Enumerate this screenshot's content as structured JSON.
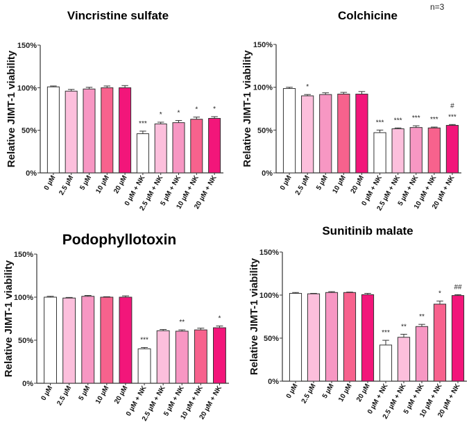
{
  "note": "n=3",
  "chart_data": [
    {
      "type": "bar",
      "title": "Vincristine sulfate",
      "ylabel": "Relative JIMT-1 viability",
      "ylim": [
        0,
        150
      ],
      "yticks": [
        "0%",
        "50%",
        "100%",
        "150%"
      ],
      "categories": [
        "0 µM",
        "2.5 µM",
        "5 µM",
        "10 µM",
        "20 µM",
        "0 µM + NK",
        "2.5 µM + NK",
        "5 µM + NK",
        "10 µM + NK",
        "20 µM + NK"
      ],
      "values": [
        101,
        96,
        98.5,
        100,
        100,
        46,
        57.5,
        59,
        63,
        64
      ],
      "errors": [
        1,
        2,
        2,
        2,
        2.5,
        3,
        2,
        2.5,
        2.5,
        2
      ],
      "significance": [
        "",
        "",
        "",
        "",
        "",
        "***",
        "*",
        "*",
        "*",
        "*"
      ]
    },
    {
      "type": "bar",
      "title": "Colchicine",
      "ylabel": "Relative JIMT-1 viability",
      "ylim": [
        0,
        150
      ],
      "yticks": [
        "0%",
        "50%",
        "100%",
        "150%"
      ],
      "categories": [
        "0 µM",
        "2.5 µM",
        "5 µM",
        "10 µM",
        "20 µM",
        "0 µM + NK",
        "2.5 µM + NK",
        "5 µM + NK",
        "10 µM + NK",
        "20 µM + NK"
      ],
      "values": [
        98.5,
        90,
        91.5,
        92,
        92,
        47,
        51.5,
        53,
        52.5,
        55.5
      ],
      "errors": [
        1.5,
        1.5,
        2,
        2,
        3,
        3,
        1,
        2,
        1,
        1
      ],
      "significance": [
        "",
        "*",
        "",
        "",
        "",
        "***",
        "***",
        "***",
        "***",
        "***"
      ],
      "significance2": [
        "",
        "",
        "",
        "",
        "",
        "",
        "",
        "",
        "",
        "#"
      ]
    },
    {
      "type": "bar",
      "title": "Podophyllotoxin",
      "ylabel": "Relative JIMT-1 viability",
      "ylim": [
        0,
        150
      ],
      "yticks": [
        "0%",
        "50%",
        "100%",
        "150%"
      ],
      "categories": [
        "0 µM",
        "2.5 µM",
        "5 µM",
        "10 µM",
        "20 µM",
        "0 µM + NK",
        "2.5 µM + NK",
        "5 µM + NK",
        "10 µM + NK",
        "20 µM + NK"
      ],
      "values": [
        100,
        99,
        101,
        100,
        100,
        40,
        61,
        60.5,
        62,
        64.5
      ],
      "errors": [
        1,
        0.7,
        1,
        0.5,
        1.5,
        1.5,
        1.5,
        1.5,
        2,
        2
      ],
      "significance": [
        "",
        "",
        "",
        "",
        "",
        "***",
        "",
        "**",
        "",
        "*"
      ]
    },
    {
      "type": "bar",
      "title": "Sunitinib malate",
      "ylabel": "Relative JIMT-1 viability",
      "ylim": [
        0,
        150
      ],
      "yticks": [
        "0%",
        "50%",
        "100%",
        "150%"
      ],
      "categories": [
        "0 µM",
        "2.5 µM",
        "5 µM",
        "10 µM",
        "20 µM",
        "0 µM + NK",
        "2.5 µM + NK",
        "5 µM + NK",
        "10 µM + NK",
        "20 µM + NK"
      ],
      "values": [
        102,
        101.5,
        103,
        103,
        100.5,
        42,
        51,
        63.5,
        89.5,
        99.5
      ],
      "errors": [
        1,
        0.5,
        1,
        0.5,
        1.5,
        5.5,
        3.5,
        2.5,
        3.5,
        1
      ],
      "significance": [
        "",
        "",
        "",
        "",
        "",
        "***",
        "**",
        "**",
        "*",
        "##"
      ]
    }
  ],
  "colors": [
    "#ffffff",
    "#fcbfdc",
    "#f797c3",
    "#f7628d",
    "#f2167a"
  ]
}
